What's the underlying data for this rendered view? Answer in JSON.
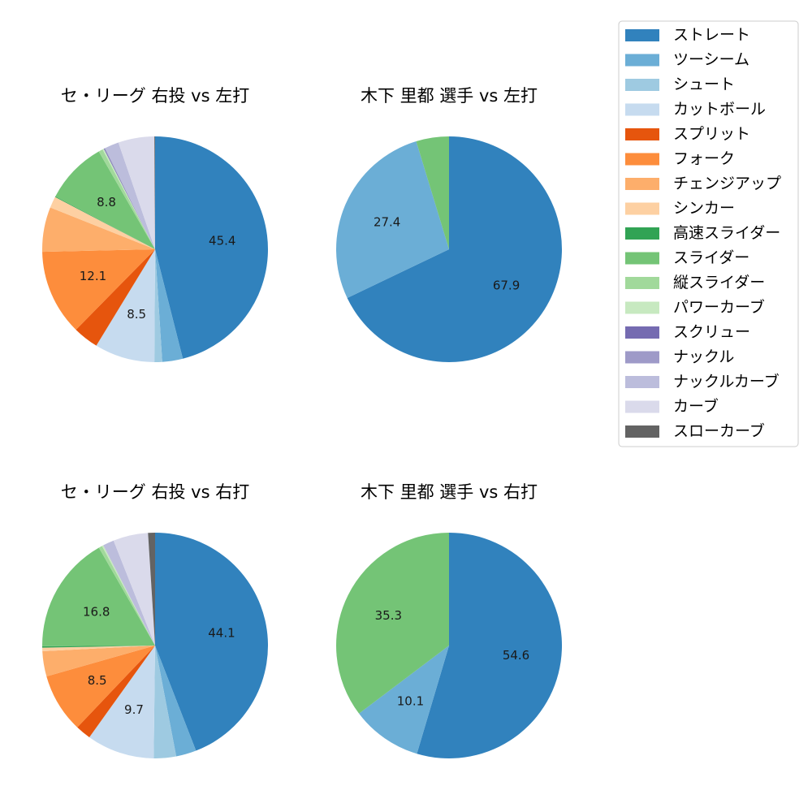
{
  "legend": {
    "items": [
      {
        "name": "ストレート",
        "color": "#3182bd"
      },
      {
        "name": "ツーシーム",
        "color": "#6baed6"
      },
      {
        "name": "シュート",
        "color": "#9ecae1"
      },
      {
        "name": "カットボール",
        "color": "#c6dbef"
      },
      {
        "name": "スプリット",
        "color": "#e6550d"
      },
      {
        "name": "フォーク",
        "color": "#fd8d3c"
      },
      {
        "name": "チェンジアップ",
        "color": "#fdae6b"
      },
      {
        "name": "シンカー",
        "color": "#fdd0a2"
      },
      {
        "name": "高速スライダー",
        "color": "#31a354"
      },
      {
        "name": "スライダー",
        "color": "#74c476"
      },
      {
        "name": "縦スライダー",
        "color": "#a1d99b"
      },
      {
        "name": "パワーカーブ",
        "color": "#c7e9c0"
      },
      {
        "name": "スクリュー",
        "color": "#756bb1"
      },
      {
        "name": "ナックル",
        "color": "#9e9ac8"
      },
      {
        "name": "ナックルカーブ",
        "color": "#bcbddc"
      },
      {
        "name": "カーブ",
        "color": "#dadaeb"
      },
      {
        "name": "スローカーブ",
        "color": "#636363"
      }
    ]
  },
  "chart_data": [
    {
      "type": "pie",
      "title": "セ・リーグ 右投 vs 左打",
      "slices": [
        {
          "name": "ストレート",
          "value": 45.4,
          "label": "45.4"
        },
        {
          "name": "ツーシーム",
          "value": 2.9,
          "label": ""
        },
        {
          "name": "シュート",
          "value": 1.1,
          "label": ""
        },
        {
          "name": "カットボール",
          "value": 8.5,
          "label": "8.5"
        },
        {
          "name": "スプリット",
          "value": 3.6,
          "label": ""
        },
        {
          "name": "フォーク",
          "value": 12.1,
          "label": "12.1"
        },
        {
          "name": "チェンジアップ",
          "value": 6.3,
          "label": ""
        },
        {
          "name": "シンカー",
          "value": 1.6,
          "label": ""
        },
        {
          "name": "高速スライダー",
          "value": 0.1,
          "label": ""
        },
        {
          "name": "スライダー",
          "value": 8.8,
          "label": "8.8"
        },
        {
          "name": "縦スライダー",
          "value": 0.6,
          "label": ""
        },
        {
          "name": "パワーカーブ",
          "value": 0.2,
          "label": ""
        },
        {
          "name": "スクリュー",
          "value": 0.1,
          "label": ""
        },
        {
          "name": "ナックル",
          "value": 0.1,
          "label": ""
        },
        {
          "name": "ナックルカーブ",
          "value": 2.0,
          "label": ""
        },
        {
          "name": "カーブ",
          "value": 5.1,
          "label": ""
        },
        {
          "name": "スローカーブ",
          "value": 0.1,
          "label": ""
        }
      ]
    },
    {
      "type": "pie",
      "title": "木下 里都 選手 vs 左打",
      "slices": [
        {
          "name": "ストレート",
          "value": 67.9,
          "label": "67.9"
        },
        {
          "name": "ツーシーム",
          "value": 27.4,
          "label": "27.4"
        },
        {
          "name": "スライダー",
          "value": 4.7,
          "label": ""
        }
      ]
    },
    {
      "type": "pie",
      "title": "セ・リーグ 右投 vs 右打",
      "slices": [
        {
          "name": "ストレート",
          "value": 44.1,
          "label": "44.1"
        },
        {
          "name": "ツーシーム",
          "value": 2.9,
          "label": ""
        },
        {
          "name": "シュート",
          "value": 3.2,
          "label": ""
        },
        {
          "name": "カットボール",
          "value": 9.7,
          "label": "9.7"
        },
        {
          "name": "スプリット",
          "value": 2.2,
          "label": ""
        },
        {
          "name": "フォーク",
          "value": 8.5,
          "label": "8.5"
        },
        {
          "name": "チェンジアップ",
          "value": 3.6,
          "label": ""
        },
        {
          "name": "シンカー",
          "value": 0.5,
          "label": ""
        },
        {
          "name": "高速スライダー",
          "value": 0.2,
          "label": ""
        },
        {
          "name": "スライダー",
          "value": 16.8,
          "label": "16.8"
        },
        {
          "name": "縦スライダー",
          "value": 0.5,
          "label": ""
        },
        {
          "name": "パワーカーブ",
          "value": 0.2,
          "label": ""
        },
        {
          "name": "ナックルカーブ",
          "value": 1.6,
          "label": ""
        },
        {
          "name": "カーブ",
          "value": 5.0,
          "label": ""
        },
        {
          "name": "スローカーブ",
          "value": 1.0,
          "label": ""
        }
      ]
    },
    {
      "type": "pie",
      "title": "木下 里都 選手 vs 右打",
      "slices": [
        {
          "name": "ストレート",
          "value": 54.6,
          "label": "54.6"
        },
        {
          "name": "ツーシーム",
          "value": 10.1,
          "label": "10.1"
        },
        {
          "name": "スライダー",
          "value": 35.3,
          "label": "35.3"
        }
      ]
    }
  ]
}
